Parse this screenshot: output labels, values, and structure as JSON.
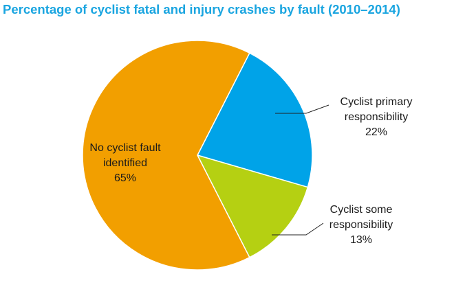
{
  "chart_data": {
    "type": "pie",
    "title": "Percentage of cyclist fatal and injury crashes by fault (2010–2014)",
    "start_angle_deg": 27,
    "direction": "clockwise",
    "slices": [
      {
        "label_lines": [
          "Cyclist primary",
          "responsibility"
        ],
        "value": 22,
        "value_text": "22%",
        "color": "#00A3E8"
      },
      {
        "label_lines": [
          "Cyclist some",
          "responsibility"
        ],
        "value": 13,
        "value_text": "13%",
        "color": "#B5D012"
      },
      {
        "label_lines": [
          "No cyclist fault",
          "identified"
        ],
        "value": 65,
        "value_text": "65%",
        "color": "#F29F00"
      }
    ],
    "title_color": "#1AA5E0"
  }
}
